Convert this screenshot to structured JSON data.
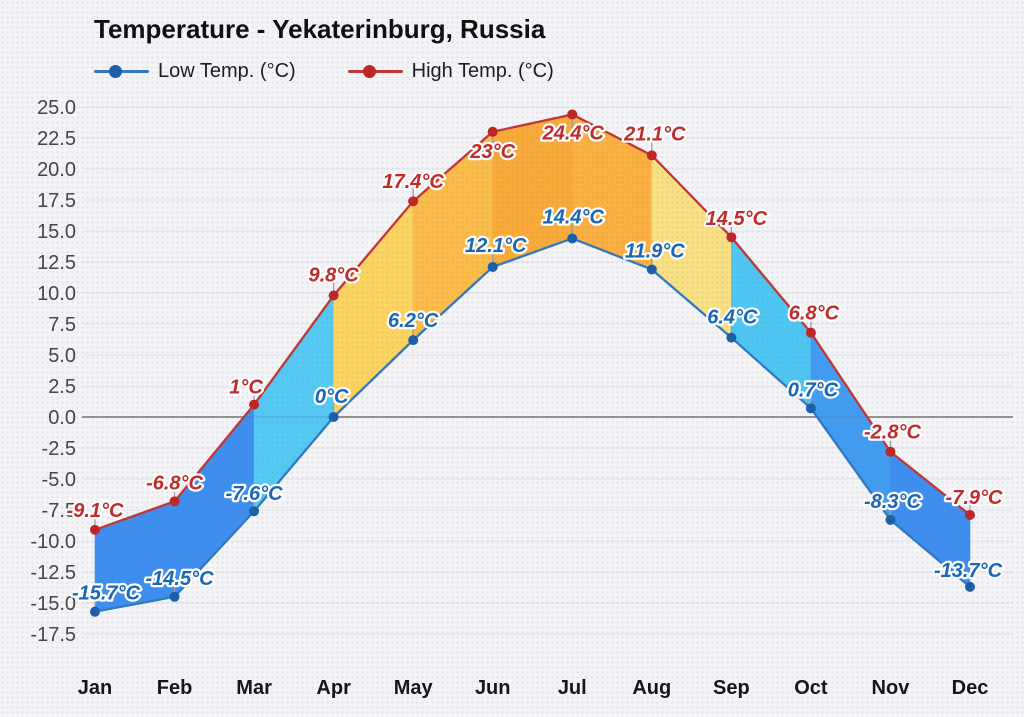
{
  "title": "Temperature - Yekaterinburg, Russia",
  "legend": {
    "items": [
      {
        "label": "Low Temp. (°C)",
        "line_color": "#3079BE",
        "dot_color": "#1A5FA8"
      },
      {
        "label": "High Temp. (°C)",
        "line_color": "#C23535",
        "dot_color": "#C02525"
      }
    ]
  },
  "colors": {
    "background": "#f4f4f7",
    "grid_line": "#e3e3ea",
    "zero_line": "#606060",
    "axis_text": "#454545",
    "month_text": "#151515",
    "leader_tick": "#9aa0a8"
  },
  "chart_data": {
    "type": "line",
    "title": "Temperature - Yekaterinburg, Russia",
    "categories": [
      "Jan",
      "Feb",
      "Mar",
      "Apr",
      "May",
      "Jun",
      "Jul",
      "Aug",
      "Sep",
      "Oct",
      "Nov",
      "Dec"
    ],
    "series": [
      {
        "id": "low",
        "name": "Low Temp. (°C)",
        "values": [
          -15.7,
          -14.5,
          -7.6,
          0,
          6.2,
          12.1,
          14.4,
          11.9,
          6.4,
          0.7,
          -8.3,
          -13.7
        ],
        "labels": [
          "-15.7°C",
          "-14.5°C",
          "-7.6°C",
          "0°C",
          "6.2°C",
          "12.1°C",
          "14.4°C",
          "11.9°C",
          "6.4°C",
          "0.7°C",
          "-8.3°C",
          "-13.7°C"
        ],
        "line_color": "#3079BE",
        "point_color": "#1A5FA8",
        "label_color": "#1767B5"
      },
      {
        "id": "high",
        "name": "High Temp. (°C)",
        "values": [
          -9.1,
          -6.8,
          1,
          9.8,
          17.4,
          23,
          24.4,
          21.1,
          14.5,
          6.8,
          -2.8,
          -7.9
        ],
        "labels": [
          "-9.1°C",
          "-6.8°C",
          "1°C",
          "9.8°C",
          "17.4°C",
          "23°C",
          "24.4°C",
          "21.1°C",
          "14.5°C",
          "6.8°C",
          "-2.8°C",
          "-7.9°C"
        ],
        "line_color": "#C23535",
        "point_color": "#C02525",
        "label_color": "#C22A2A"
      }
    ],
    "band_colors": [
      "#3E8EF0",
      "#3E8EF0",
      "#53C9F4",
      "#FBD55F",
      "#FBBC49",
      "#FAAA38",
      "#FBB040",
      "#F8E083",
      "#4EC6F2",
      "#429CF1",
      "#3E8EF0"
    ],
    "ylim": [
      -17.5,
      25.0
    ],
    "ytick_step": 2.5,
    "grid": true,
    "zero_line": true,
    "legend_position": "top-left",
    "label_offsets": {
      "high": [
        [
          0,
          -13
        ],
        [
          0,
          -12
        ],
        [
          -8,
          -11
        ],
        [
          0,
          -14
        ],
        [
          0,
          -13
        ],
        [
          0,
          26
        ],
        [
          1,
          25
        ],
        [
          3,
          -15
        ],
        [
          5,
          -12
        ],
        [
          3,
          -13
        ],
        [
          2,
          -13
        ],
        [
          4,
          -11
        ]
      ],
      "low": [
        [
          11,
          -12
        ],
        [
          5,
          -12
        ],
        [
          0,
          -11
        ],
        [
          -2,
          -14
        ],
        [
          0,
          -13
        ],
        [
          3,
          -15
        ],
        [
          1,
          -15
        ],
        [
          3,
          -12
        ],
        [
          1,
          -14
        ],
        [
          2,
          -12
        ],
        [
          2,
          -12
        ],
        [
          -2,
          -10
        ]
      ]
    }
  }
}
